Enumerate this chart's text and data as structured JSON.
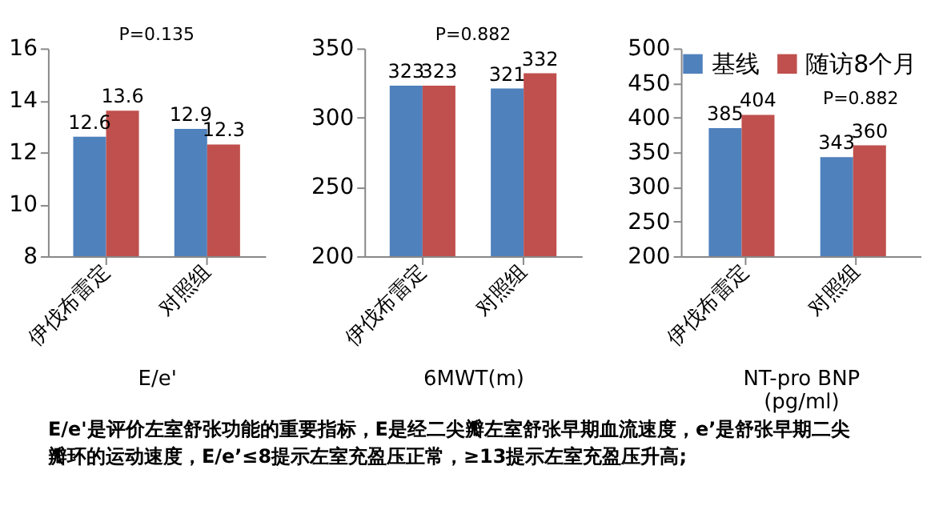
{
  "chart_data": [
    {
      "type": "bar",
      "xlabel": "E/e'",
      "categories": [
        "伊伐布雷定",
        "对照组"
      ],
      "series": [
        {
          "color": "#4f81bd",
          "values": [
            12.6,
            12.9
          ]
        },
        {
          "color": "#c0504d",
          "values": [
            13.6,
            12.3
          ]
        }
      ],
      "ylim": [
        8,
        16
      ],
      "yticks": [
        8,
        10,
        12,
        14,
        16
      ],
      "grid": false,
      "data_labels": true,
      "annotations": [
        "P=0.135",
        "E/e'是评价左室舒张功能的重要指标，E是经二尖瓣左室舒张早期血流速度，e’是舒张早期二尖瓣环的运动速度，E/e’≤8提示左室充盈压正常，≥13提示左室充盈压升高;"
      ]
    },
    {
      "type": "bar",
      "xlabel": "6MWT(m)",
      "categories": [
        "伊伐布雷定",
        "对照组"
      ],
      "series": [
        {
          "color": "#4f81bd",
          "values": [
            323,
            321
          ]
        },
        {
          "color": "#c0504d",
          "values": [
            323,
            332
          ]
        }
      ],
      "ylim": [
        200,
        350
      ],
      "yticks": [
        200,
        250,
        300,
        350
      ],
      "grid": false,
      "data_labels": true,
      "annotations": [
        "P=0.882"
      ]
    },
    {
      "type": "bar",
      "xlabel": "NT-pro BNP\n(pg/ml)",
      "categories": [
        "伊伐布雷定",
        "对照组"
      ],
      "series": [
        {
          "name": "基线",
          "color": "#4f81bd",
          "values": [
            385,
            343
          ]
        },
        {
          "name": "随访8个月",
          "color": "#c0504d",
          "values": [
            404,
            360
          ]
        }
      ],
      "ylim": [
        200,
        500
      ],
      "yticks": [
        200,
        250,
        300,
        350,
        400,
        450,
        500
      ],
      "grid": false,
      "legend": "top right",
      "data_labels": true,
      "annotations": [
        "P=0.882"
      ]
    }
  ]
}
